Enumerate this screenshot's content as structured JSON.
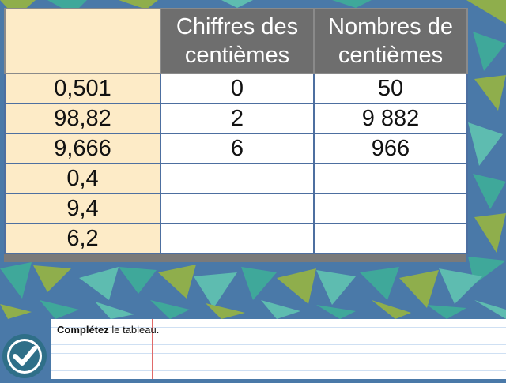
{
  "table": {
    "headers": [
      "",
      "Chiffres des centièmes",
      "Nombres de centièmes"
    ],
    "rows": [
      {
        "number": "0,501",
        "digit": "0",
        "count": "50"
      },
      {
        "number": "98,82",
        "digit": "2",
        "count": "9 882"
      },
      {
        "number": "9,666",
        "digit": "6",
        "count": "966"
      },
      {
        "number": "0,4",
        "digit": "",
        "count": ""
      },
      {
        "number": "9,4",
        "digit": "",
        "count": ""
      },
      {
        "number": "6,2",
        "digit": "",
        "count": ""
      }
    ]
  },
  "footer": {
    "instruction_bold": "Complétez",
    "instruction_rest": " le tableau."
  },
  "colors": {
    "background": "#4a79a8",
    "header": "#6e6e6e",
    "first_column": "#fdebc7",
    "triangles": [
      "#3fa89a",
      "#8fae4c",
      "#5ebcb0"
    ],
    "check_button": "#2f6f88"
  },
  "icons": {
    "check_button": "checkmark-circle-icon"
  }
}
